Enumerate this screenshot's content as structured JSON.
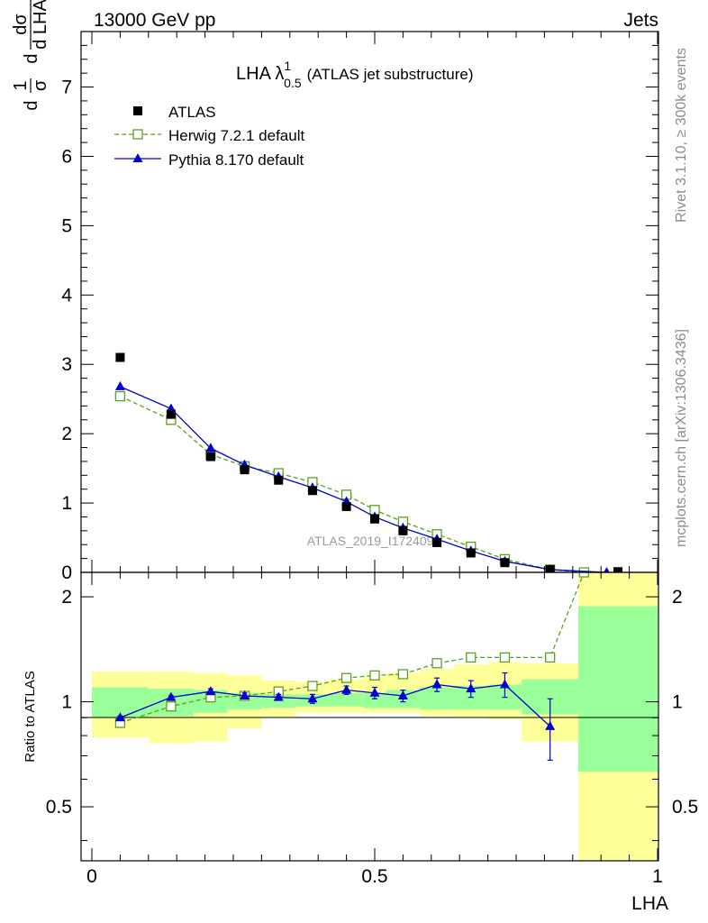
{
  "header": {
    "left": "13000 GeV pp",
    "right": "Jets"
  },
  "side_text": {
    "rivet": "Rivet 3.1.10, ≥ 300k events",
    "mcplots": "mcplots.cern.ch [arXiv:1306.3436]"
  },
  "watermark": "ATLAS_2019_I1724098",
  "chart_data": [
    {
      "type": "scatter",
      "panel": "main",
      "title_main": "LHA λ",
      "title_sup": "1",
      "title_sub": "0.5",
      "title_suffix": "(ATLAS jet substructure)",
      "ylabel": "1/σ dσ/d LHA",
      "ylabel_parts": {
        "n1": "d",
        "num1": "1",
        "den1": "σ",
        "n2": "d",
        "num2": "dσ",
        "den2": "d LHA"
      },
      "xlim": [
        0,
        1
      ],
      "ylim": [
        0,
        7.8
      ],
      "yticks": [
        {
          "v": 0,
          "label": "0"
        },
        {
          "v": 1,
          "label": "1"
        },
        {
          "v": 2,
          "label": "2"
        },
        {
          "v": 3,
          "label": "3"
        },
        {
          "v": 4,
          "label": "4"
        },
        {
          "v": 5,
          "label": "5"
        },
        {
          "v": 6,
          "label": "6"
        },
        {
          "v": 7,
          "label": "7"
        }
      ],
      "legend_position": "top-left",
      "series": [
        {
          "name": "ATLAS",
          "style": "data",
          "color": "#000000",
          "x": [
            0.05,
            0.14,
            0.21,
            0.27,
            0.33,
            0.39,
            0.45,
            0.5,
            0.55,
            0.61,
            0.67,
            0.73,
            0.81,
            0.93
          ],
          "y": [
            3.1,
            2.28,
            1.67,
            1.48,
            1.33,
            1.18,
            0.95,
            0.77,
            0.6,
            0.43,
            0.28,
            0.14,
            0.04,
            0.01
          ]
        },
        {
          "name": "Herwig 7.2.1 default",
          "style": "open-square-dashed",
          "color": "#5aa01e",
          "x": [
            0.05,
            0.14,
            0.21,
            0.27,
            0.33,
            0.39,
            0.45,
            0.5,
            0.55,
            0.61,
            0.67,
            0.73,
            0.81,
            0.87
          ],
          "y": [
            2.54,
            2.2,
            1.7,
            1.53,
            1.43,
            1.3,
            1.12,
            0.9,
            0.73,
            0.55,
            0.37,
            0.19,
            0.04,
            0.0
          ]
        },
        {
          "name": "Pythia 8.170 default",
          "style": "triangle-solid",
          "color": "#0000d0",
          "x": [
            0.05,
            0.14,
            0.21,
            0.27,
            0.33,
            0.39,
            0.45,
            0.5,
            0.55,
            0.61,
            0.67,
            0.73,
            0.81,
            0.91
          ],
          "y": [
            2.68,
            2.36,
            1.79,
            1.55,
            1.38,
            1.22,
            1.02,
            0.8,
            0.64,
            0.48,
            0.31,
            0.16,
            0.04,
            0.0
          ]
        }
      ]
    },
    {
      "type": "scatter",
      "panel": "ratio",
      "ylabel": "Ratio to ATLAS",
      "xlabel": "LHA",
      "xlim": [
        0,
        1
      ],
      "ylim": [
        0.35,
        2.35
      ],
      "xticks": [
        {
          "v": 0,
          "label": "0"
        },
        {
          "v": 0.5,
          "label": "0.5"
        },
        {
          "v": 1,
          "label": "1"
        }
      ],
      "yticks": [
        {
          "v": 0.5,
          "label": "0.5"
        },
        {
          "v": 1,
          "label": "1"
        },
        {
          "v": 2,
          "label": "2"
        }
      ],
      "bands": [
        {
          "x0": 0.0,
          "x1": 0.1,
          "inner": [
            0.9,
            1.1
          ],
          "outer": [
            0.79,
            1.22
          ]
        },
        {
          "x0": 0.1,
          "x1": 0.18,
          "inner": [
            0.91,
            1.09
          ],
          "outer": [
            0.76,
            1.22
          ]
        },
        {
          "x0": 0.18,
          "x1": 0.24,
          "inner": [
            0.93,
            1.08
          ],
          "outer": [
            0.77,
            1.21
          ]
        },
        {
          "x0": 0.24,
          "x1": 0.3,
          "inner": [
            0.95,
            1.06
          ],
          "outer": [
            0.84,
            1.19
          ]
        },
        {
          "x0": 0.3,
          "x1": 0.36,
          "inner": [
            0.96,
            1.05
          ],
          "outer": [
            0.9,
            1.15
          ]
        },
        {
          "x0": 0.36,
          "x1": 0.42,
          "inner": [
            0.97,
            1.05
          ],
          "outer": [
            0.93,
            1.14
          ]
        },
        {
          "x0": 0.42,
          "x1": 0.48,
          "inner": [
            0.97,
            1.06
          ],
          "outer": [
            0.93,
            1.16
          ]
        },
        {
          "x0": 0.48,
          "x1": 0.52,
          "inner": [
            0.96,
            1.06
          ],
          "outer": [
            0.93,
            1.18
          ]
        },
        {
          "x0": 0.52,
          "x1": 0.58,
          "inner": [
            0.96,
            1.08
          ],
          "outer": [
            0.93,
            1.21
          ]
        },
        {
          "x0": 0.58,
          "x1": 0.64,
          "inner": [
            0.95,
            1.1
          ],
          "outer": [
            0.91,
            1.24
          ]
        },
        {
          "x0": 0.64,
          "x1": 0.7,
          "inner": [
            0.95,
            1.11
          ],
          "outer": [
            0.9,
            1.28
          ]
        },
        {
          "x0": 0.7,
          "x1": 0.76,
          "inner": [
            0.95,
            1.12
          ],
          "outer": [
            0.89,
            1.3
          ]
        },
        {
          "x0": 0.76,
          "x1": 0.86,
          "inner": [
            0.92,
            1.16
          ],
          "outer": [
            0.77,
            1.29
          ]
        },
        {
          "x0": 0.86,
          "x1": 1.0,
          "inner": [
            0.63,
            1.88
          ],
          "outer": [
            0.35,
            2.35
          ]
        }
      ],
      "series": [
        {
          "name": "Herwig 7.2.1 default",
          "color": "#5aa01e",
          "x": [
            0.05,
            0.14,
            0.21,
            0.27,
            0.33,
            0.39,
            0.45,
            0.5,
            0.55,
            0.61,
            0.67,
            0.73,
            0.81,
            0.87
          ],
          "y": [
            0.87,
            0.97,
            1.03,
            1.04,
            1.07,
            1.11,
            1.17,
            1.19,
            1.2,
            1.29,
            1.34,
            1.34,
            1.34,
            2.35
          ],
          "err": [
            0.02,
            0.01,
            0.01,
            0.02,
            0.02,
            0.02,
            0.02,
            0.02,
            0.02,
            0.02,
            0.03,
            0.03,
            0.03,
            0.0
          ]
        },
        {
          "name": "Pythia 8.170 default",
          "color": "#0000d0",
          "x": [
            0.05,
            0.14,
            0.21,
            0.27,
            0.33,
            0.39,
            0.45,
            0.5,
            0.55,
            0.61,
            0.67,
            0.73,
            0.81
          ],
          "y": [
            0.9,
            1.03,
            1.07,
            1.04,
            1.03,
            1.02,
            1.08,
            1.06,
            1.04,
            1.12,
            1.09,
            1.12,
            0.85
          ],
          "err": [
            0.01,
            0.01,
            0.02,
            0.02,
            0.02,
            0.03,
            0.03,
            0.04,
            0.04,
            0.05,
            0.06,
            0.09,
            0.17
          ]
        }
      ]
    }
  ]
}
